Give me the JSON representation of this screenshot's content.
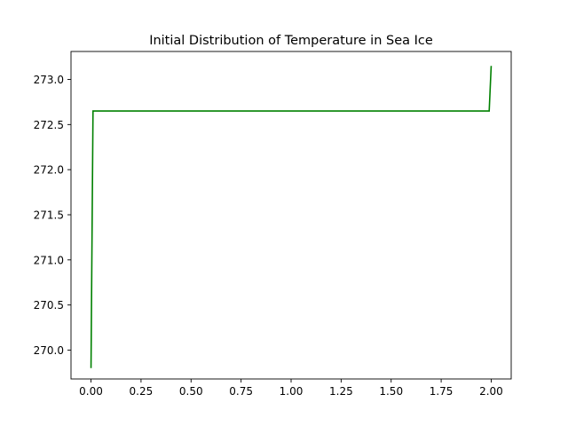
{
  "chart_data": {
    "type": "line",
    "title": "Initial Distribution of Temperature in Sea Ice",
    "xlabel": "",
    "ylabel": "",
    "xlim": [
      -0.1,
      2.1
    ],
    "ylim": [
      269.68,
      273.31
    ],
    "grid": false,
    "legend": "none",
    "x_ticks": [
      0.0,
      0.25,
      0.5,
      0.75,
      1.0,
      1.25,
      1.5,
      1.75,
      2.0
    ],
    "x_tick_labels": [
      "0.00",
      "0.25",
      "0.50",
      "0.75",
      "1.00",
      "1.25",
      "1.50",
      "1.75",
      "2.00"
    ],
    "y_ticks": [
      270.0,
      270.5,
      271.0,
      271.5,
      272.0,
      272.5,
      273.0
    ],
    "y_tick_labels": [
      "270.0",
      "270.5",
      "271.0",
      "271.5",
      "272.0",
      "272.5",
      "273.0"
    ],
    "series": [
      {
        "color": "#008000",
        "x": [
          0.0,
          0.01,
          0.5,
          1.0,
          1.5,
          1.99,
          2.0
        ],
        "y": [
          269.8,
          272.65,
          272.65,
          272.65,
          272.65,
          272.65,
          273.15
        ]
      }
    ]
  }
}
